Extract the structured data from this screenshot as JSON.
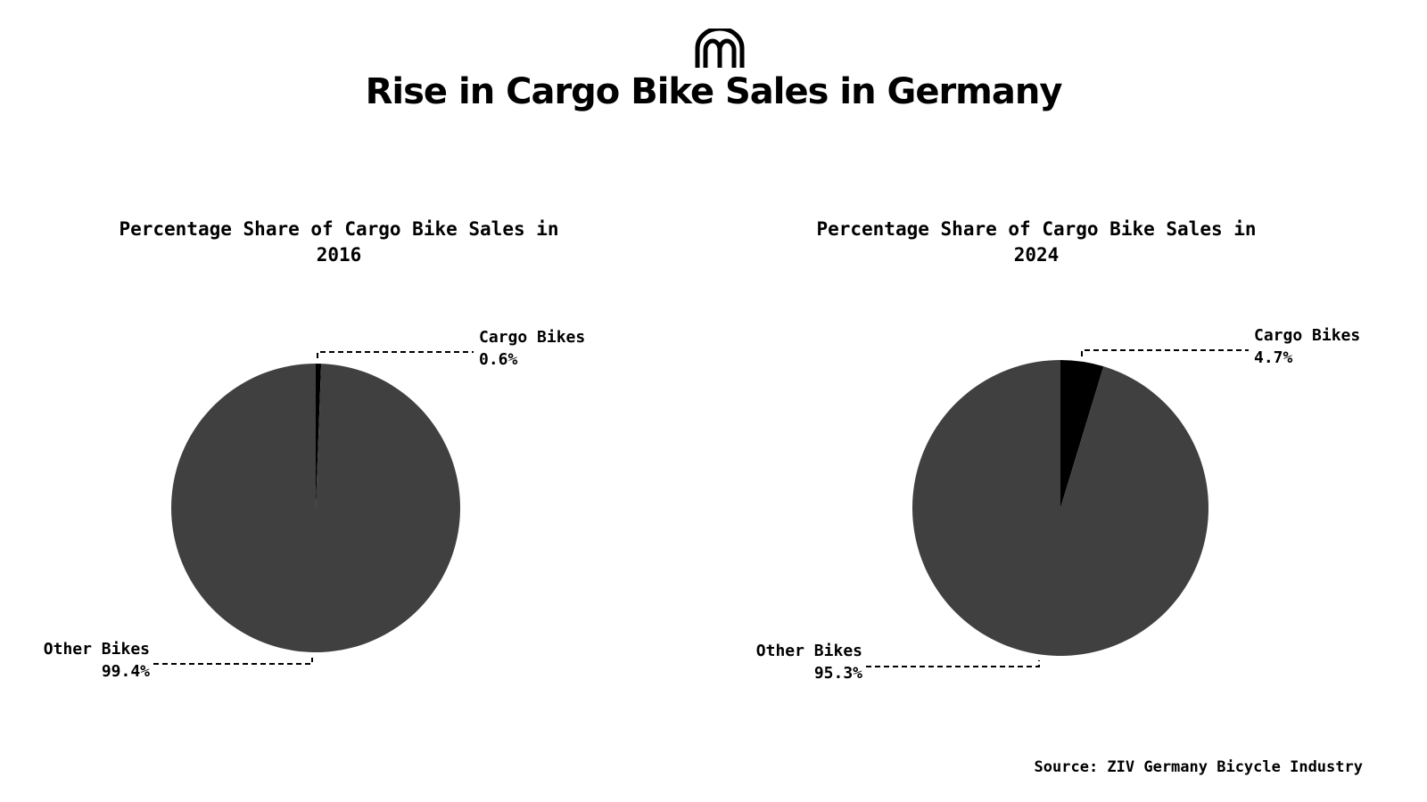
{
  "header": {
    "logo_icon": "arches-logo-icon",
    "title": "Rise in Cargo Bike Sales in Germany"
  },
  "colors": {
    "other_bikes": "#404040",
    "cargo_bikes": "#000000",
    "background": "#ffffff"
  },
  "chart_data": [
    {
      "type": "pie",
      "title": "Percentage Share of Cargo Bike Sales in\n2016",
      "slices": [
        {
          "label": "Cargo Bikes",
          "value": 0.6,
          "value_label": "0.6%",
          "color": "#000000"
        },
        {
          "label": "Other Bikes",
          "value": 99.4,
          "value_label": "99.4%",
          "color": "#404040"
        }
      ],
      "start_angle": "top",
      "direction": "clockwise",
      "legend": "none"
    },
    {
      "type": "pie",
      "title": "Percentage Share of Cargo Bike Sales in\n2024",
      "slices": [
        {
          "label": "Cargo Bikes",
          "value": 4.7,
          "value_label": "4.7%",
          "color": "#000000"
        },
        {
          "label": "Other Bikes",
          "value": 95.3,
          "value_label": "95.3%",
          "color": "#404040"
        }
      ],
      "start_angle": "top",
      "direction": "clockwise",
      "legend": "none"
    }
  ],
  "footer": {
    "source": "Source: ZIV Germany Bicycle Industry"
  }
}
